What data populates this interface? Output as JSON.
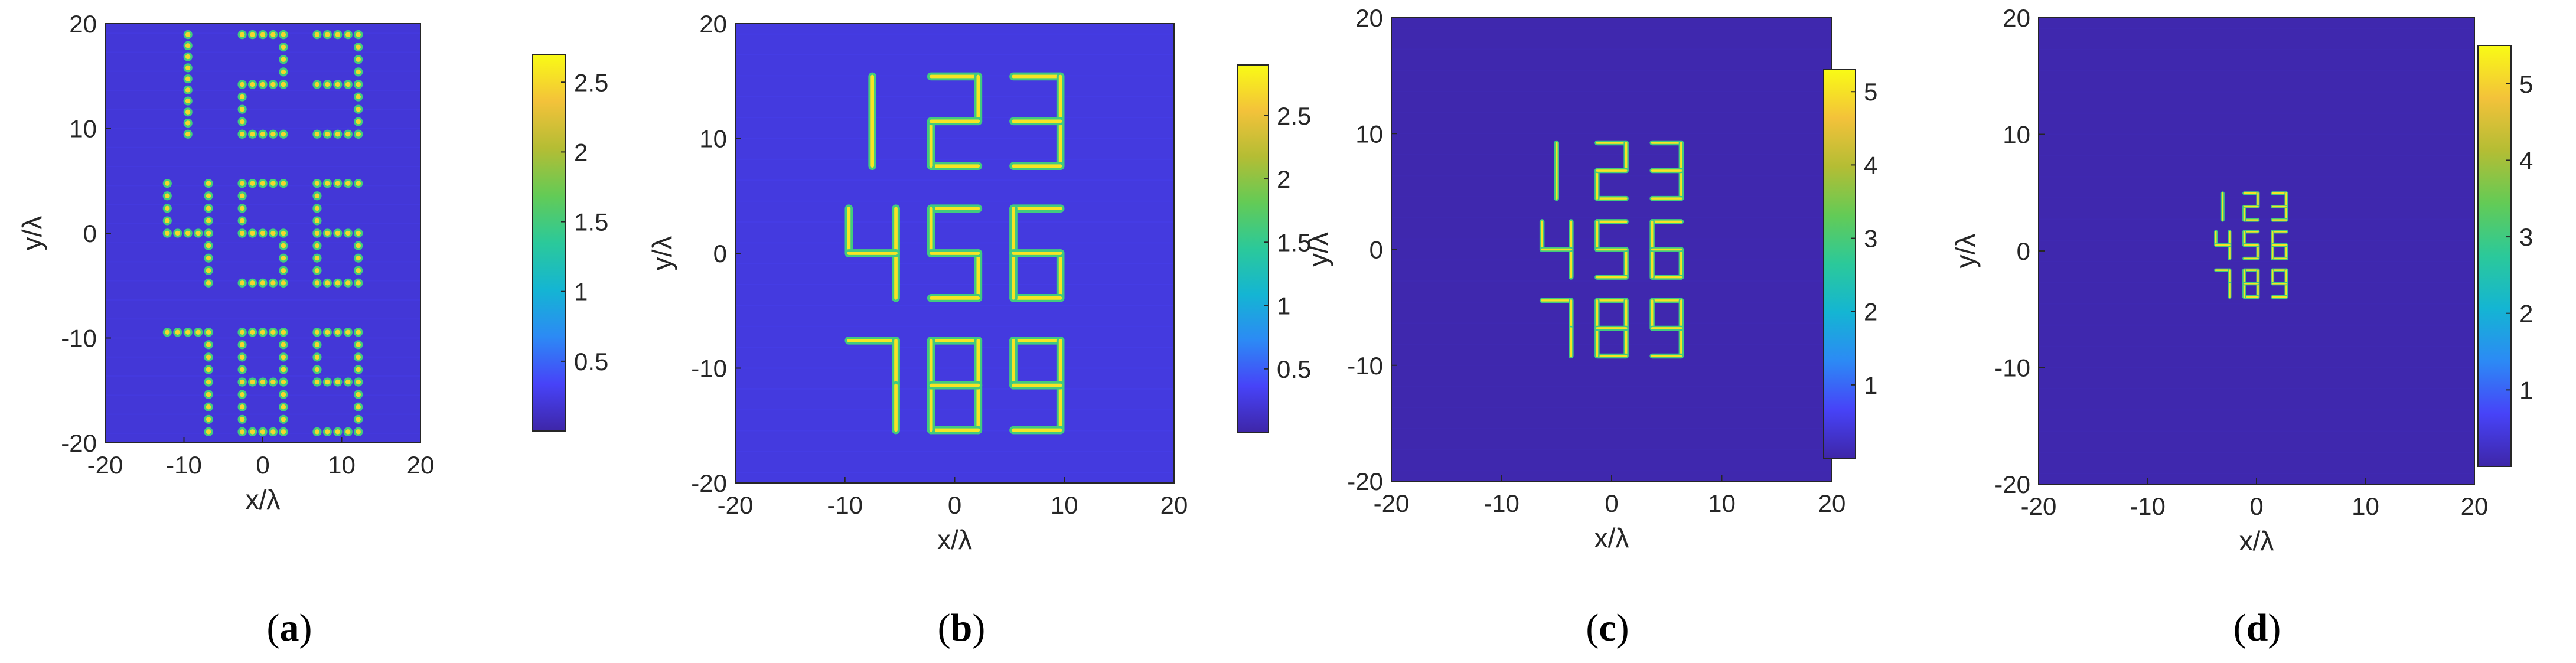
{
  "chart_data": [
    {
      "type": "heatmap",
      "caption_letter": "a",
      "caption_open": "(",
      "caption_close": ")",
      "xlabel": "x/λ",
      "ylabel": "y/λ",
      "xlim": [
        -20,
        20
      ],
      "ylim": [
        -20,
        20
      ],
      "x_ticks": [
        "-20",
        "-10",
        "0",
        "10",
        "20"
      ],
      "y_ticks": [
        "20",
        "10",
        "0",
        "-10",
        "-20"
      ],
      "colorbar": {
        "range": [
          0,
          2.7
        ],
        "ticks": [
          "2.5",
          "2",
          "1.5",
          "1",
          "0.5"
        ],
        "tick_values": [
          2.5,
          2,
          1.5,
          1,
          0.5
        ]
      },
      "digit_grid": {
        "digits": [
          "1",
          "2",
          "3",
          "4",
          "5",
          "6",
          "7",
          "8",
          "9"
        ],
        "center": [
          0,
          0
        ],
        "cell_width": 9.5,
        "cell_height": 14.2,
        "digit_height": 9.5,
        "style": "dots"
      },
      "peak_value": 2.7,
      "background_value": 0.2
    },
    {
      "type": "heatmap",
      "caption_letter": "b",
      "caption_open": "(",
      "caption_close": ")",
      "xlabel": "x/λ",
      "ylabel": "y/λ",
      "xlim": [
        -20,
        20
      ],
      "ylim": [
        -20,
        20
      ],
      "x_ticks": [
        "-20",
        "-10",
        "0",
        "10",
        "20"
      ],
      "y_ticks": [
        "20",
        "10",
        "0",
        "-10",
        "-20"
      ],
      "colorbar": {
        "range": [
          0,
          2.9
        ],
        "ticks": [
          "2.5",
          "2",
          "1.5",
          "1",
          "0.5"
        ],
        "tick_values": [
          2.5,
          2,
          1.5,
          1,
          0.5
        ]
      },
      "digit_grid": {
        "digits": [
          "1",
          "2",
          "3",
          "4",
          "5",
          "6",
          "7",
          "8",
          "9"
        ],
        "center": [
          0,
          0
        ],
        "cell_width": 7.5,
        "cell_height": 11.5,
        "digit_height": 7.8,
        "style": "solid"
      },
      "peak_value": 2.9,
      "background_value": 0.25
    },
    {
      "type": "heatmap",
      "caption_letter": "c",
      "caption_open": "(",
      "caption_close": ")",
      "xlabel": "x/λ",
      "ylabel": "y/λ",
      "xlim": [
        -20,
        20
      ],
      "ylim": [
        -20,
        20
      ],
      "x_ticks": [
        "-20",
        "-10",
        "0",
        "10",
        "20"
      ],
      "y_ticks": [
        "20",
        "10",
        "0",
        "-10",
        "-20"
      ],
      "colorbar": {
        "range": [
          0,
          5.3
        ],
        "ticks": [
          "5",
          "4",
          "3",
          "2",
          "1"
        ],
        "tick_values": [
          5,
          4,
          3,
          2,
          1
        ]
      },
      "digit_grid": {
        "digits": [
          "1",
          "2",
          "3",
          "4",
          "5",
          "6",
          "7",
          "8",
          "9"
        ],
        "center": [
          0,
          0
        ],
        "cell_width": 5.0,
        "cell_height": 6.8,
        "digit_height": 4.8,
        "style": "solid"
      },
      "peak_value": 5.3,
      "background_value": 0.05
    },
    {
      "type": "heatmap",
      "caption_letter": "d",
      "caption_open": "(",
      "caption_close": ")",
      "xlabel": "x/λ",
      "ylabel": "y/λ",
      "xlim": [
        -20,
        20
      ],
      "ylim": [
        -20,
        20
      ],
      "x_ticks": [
        "-20",
        "-10",
        "0",
        "10",
        "20"
      ],
      "y_ticks": [
        "20",
        "10",
        "0",
        "-10",
        "-20"
      ],
      "colorbar": {
        "range": [
          0,
          5.5
        ],
        "ticks": [
          "5",
          "4",
          "3",
          "2",
          "1"
        ],
        "tick_values": [
          5,
          4,
          3,
          2,
          1
        ]
      },
      "digit_grid": {
        "digits": [
          "1",
          "2",
          "3",
          "4",
          "5",
          "6",
          "7",
          "8",
          "9"
        ],
        "center": [
          -0.5,
          0.5
        ],
        "cell_width": 2.6,
        "cell_height": 3.3,
        "digit_height": 2.3,
        "style": "solid"
      },
      "peak_value": 5.5,
      "background_value": 0.05
    }
  ],
  "colors": {
    "colormap": [
      "#3e26a8",
      "#4743f8",
      "#2c8af5",
      "#14b5d3",
      "#2bc99a",
      "#63cb56",
      "#b4bd34",
      "#f3c23a",
      "#f9fb15"
    ]
  }
}
